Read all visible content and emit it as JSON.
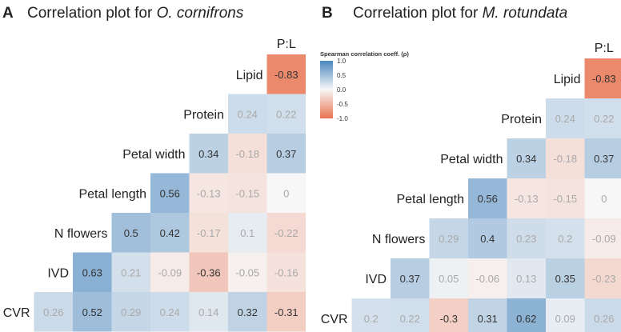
{
  "panels": [
    {
      "letter": "A",
      "title_prefix": "Correlation plot for ",
      "title_species": "O. cornifrons"
    },
    {
      "letter": "B",
      "title_prefix": "Correlation plot for ",
      "title_species": "M. rotundata"
    }
  ],
  "legend": {
    "title": "Spearman correlation coeff. (ρ)",
    "tick_labels": [
      "1.0",
      "0.5",
      "0.0",
      "-0.5",
      "-1.0"
    ],
    "tick_values": [
      1.0,
      0.5,
      0.0,
      -0.5,
      -1.0
    ]
  },
  "colors": {
    "positive": "#4a87bf",
    "negative": "#e8734f",
    "neutral": "#f7f7f7",
    "dark_text": "#333333",
    "light_text": "#a9a9a9"
  },
  "chart_data": [
    {
      "type": "heatmap",
      "title": "Correlation plot for O. cornifrons",
      "variables": [
        "CVR",
        "IVD",
        "N flowers",
        "Petal length",
        "Petal width",
        "Protein",
        "Lipid",
        "P:L"
      ],
      "value_range": [
        -1.0,
        1.0
      ],
      "cells": [
        {
          "row": "Lipid",
          "col": "P:L",
          "value": -0.83
        },
        {
          "row": "Protein",
          "col": "Lipid",
          "value": 0.24
        },
        {
          "row": "Protein",
          "col": "P:L",
          "value": 0.22
        },
        {
          "row": "Petal width",
          "col": "Protein",
          "value": 0.34
        },
        {
          "row": "Petal width",
          "col": "Lipid",
          "value": -0.18
        },
        {
          "row": "Petal width",
          "col": "P:L",
          "value": 0.37
        },
        {
          "row": "Petal length",
          "col": "Petal width",
          "value": 0.56
        },
        {
          "row": "Petal length",
          "col": "Protein",
          "value": -0.13
        },
        {
          "row": "Petal length",
          "col": "Lipid",
          "value": -0.15
        },
        {
          "row": "Petal length",
          "col": "P:L",
          "value": 0
        },
        {
          "row": "N flowers",
          "col": "Petal length",
          "value": 0.5
        },
        {
          "row": "N flowers",
          "col": "Petal width",
          "value": 0.42
        },
        {
          "row": "N flowers",
          "col": "Protein",
          "value": -0.17
        },
        {
          "row": "N flowers",
          "col": "Lipid",
          "value": 0.1
        },
        {
          "row": "N flowers",
          "col": "P:L",
          "value": -0.22
        },
        {
          "row": "IVD",
          "col": "N flowers",
          "value": 0.63
        },
        {
          "row": "IVD",
          "col": "Petal length",
          "value": 0.21
        },
        {
          "row": "IVD",
          "col": "Petal width",
          "value": -0.09
        },
        {
          "row": "IVD",
          "col": "Protein",
          "value": -0.36
        },
        {
          "row": "IVD",
          "col": "Lipid",
          "value": -0.05
        },
        {
          "row": "IVD",
          "col": "P:L",
          "value": -0.16
        },
        {
          "row": "CVR",
          "col": "IVD",
          "value": 0.26
        },
        {
          "row": "CVR",
          "col": "N flowers",
          "value": 0.52
        },
        {
          "row": "CVR",
          "col": "Petal length",
          "value": 0.29
        },
        {
          "row": "CVR",
          "col": "Petal width",
          "value": 0.24
        },
        {
          "row": "CVR",
          "col": "Protein",
          "value": 0.14
        },
        {
          "row": "CVR",
          "col": "Lipid",
          "value": 0.32
        },
        {
          "row": "CVR",
          "col": "P:L",
          "value": -0.31
        }
      ]
    },
    {
      "type": "heatmap",
      "title": "Correlation plot for M. rotundata",
      "variables": [
        "CVR",
        "IVD",
        "N flowers",
        "Petal length",
        "Petal width",
        "Protein",
        "Lipid",
        "P:L"
      ],
      "value_range": [
        -1.0,
        1.0
      ],
      "cells": [
        {
          "row": "Lipid",
          "col": "P:L",
          "value": -0.83
        },
        {
          "row": "Protein",
          "col": "Lipid",
          "value": 0.24
        },
        {
          "row": "Protein",
          "col": "P:L",
          "value": 0.22
        },
        {
          "row": "Petal width",
          "col": "Protein",
          "value": 0.34
        },
        {
          "row": "Petal width",
          "col": "Lipid",
          "value": -0.18
        },
        {
          "row": "Petal width",
          "col": "P:L",
          "value": 0.37
        },
        {
          "row": "Petal length",
          "col": "Petal width",
          "value": 0.56
        },
        {
          "row": "Petal length",
          "col": "Protein",
          "value": -0.13
        },
        {
          "row": "Petal length",
          "col": "Lipid",
          "value": -0.15
        },
        {
          "row": "Petal length",
          "col": "P:L",
          "value": 0
        },
        {
          "row": "N flowers",
          "col": "Petal length",
          "value": 0.29
        },
        {
          "row": "N flowers",
          "col": "Petal width",
          "value": 0.4
        },
        {
          "row": "N flowers",
          "col": "Protein",
          "value": 0.23
        },
        {
          "row": "N flowers",
          "col": "Lipid",
          "value": 0.2
        },
        {
          "row": "N flowers",
          "col": "P:L",
          "value": -0.09
        },
        {
          "row": "IVD",
          "col": "N flowers",
          "value": 0.37
        },
        {
          "row": "IVD",
          "col": "Petal length",
          "value": 0.05
        },
        {
          "row": "IVD",
          "col": "Petal width",
          "value": -0.06
        },
        {
          "row": "IVD",
          "col": "Protein",
          "value": 0.13
        },
        {
          "row": "IVD",
          "col": "Lipid",
          "value": 0.35
        },
        {
          "row": "IVD",
          "col": "P:L",
          "value": -0.23
        },
        {
          "row": "CVR",
          "col": "IVD",
          "value": 0.2
        },
        {
          "row": "CVR",
          "col": "N flowers",
          "value": 0.22
        },
        {
          "row": "CVR",
          "col": "Petal length",
          "value": -0.3
        },
        {
          "row": "CVR",
          "col": "Petal width",
          "value": 0.31
        },
        {
          "row": "CVR",
          "col": "Protein",
          "value": 0.62
        },
        {
          "row": "CVR",
          "col": "Lipid",
          "value": 0.09
        },
        {
          "row": "CVR",
          "col": "P:L",
          "value": 0.26
        }
      ]
    }
  ]
}
